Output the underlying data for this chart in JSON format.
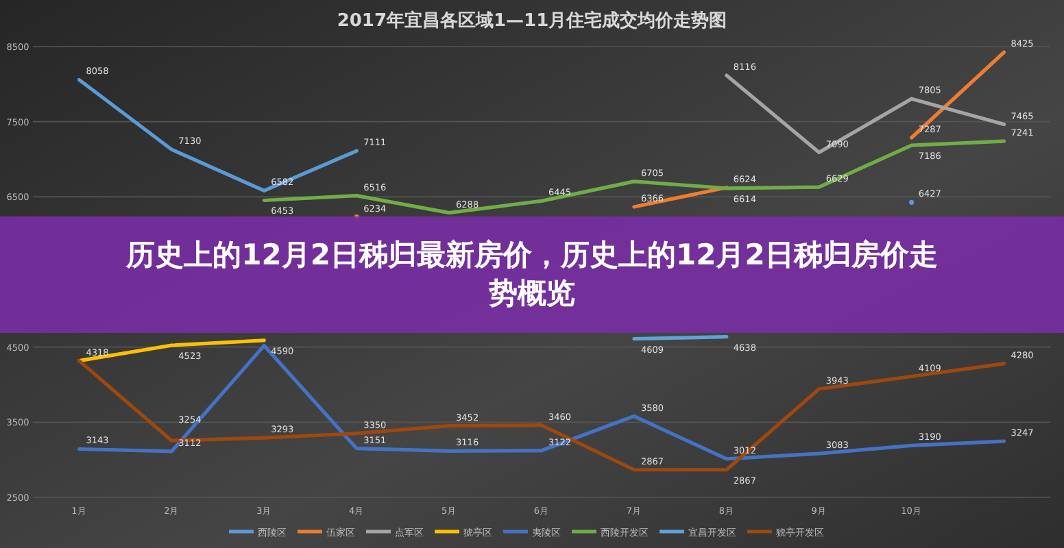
{
  "chart_data": {
    "type": "line",
    "title": "2017年宜昌各区域1—11月住宅成交均价走势图",
    "categories": [
      "1月",
      "2月",
      "3月",
      "4月",
      "5月",
      "6月",
      "7月",
      "8月",
      "9月",
      "10月",
      null
    ],
    "ylim": [
      2500,
      8500
    ],
    "yticks": [
      2500,
      3500,
      4500,
      6500,
      7500,
      8500
    ],
    "grid": "y",
    "legend": "bottom",
    "annotations": [
      "历史上的12月2日秭归最新房价，历史上的12月2日秭归房价走势概览"
    ],
    "series": [
      {
        "name": "西陵区",
        "color": "#5b9bd5",
        "values": [
          8058,
          7130,
          6582,
          7111,
          null,
          null,
          null,
          null,
          null,
          6427,
          null
        ],
        "value_labels": [
          "8058",
          "7130",
          "6582",
          "7111",
          null,
          null,
          null,
          null,
          null,
          "6427",
          null
        ]
      },
      {
        "name": "伍家区",
        "color": "#ed7d31",
        "values": [
          null,
          null,
          null,
          6234,
          null,
          null,
          6366,
          6624,
          null,
          7287,
          8425
        ],
        "value_labels": [
          null,
          null,
          null,
          "6234",
          null,
          null,
          "6366",
          "6624",
          null,
          "7287",
          "8425"
        ]
      },
      {
        "name": "点军区",
        "color": "#a5a5a5",
        "values": [
          null,
          null,
          null,
          null,
          null,
          null,
          null,
          8116,
          7090,
          7805,
          7465
        ],
        "value_labels": [
          null,
          null,
          null,
          null,
          null,
          null,
          null,
          "8116",
          "7090",
          "7805",
          "7465"
        ]
      },
      {
        "name": "猇亭区",
        "color": "#ffc000",
        "values": [
          4318,
          4523,
          4590,
          null,
          null,
          null,
          null,
          null,
          null,
          null,
          null
        ],
        "value_labels": [
          "4318",
          "4523",
          "4590",
          null,
          null,
          null,
          null,
          null,
          null,
          null,
          null
        ]
      },
      {
        "name": "夷陵区",
        "color": "#4472c4",
        "values": [
          3143,
          3112,
          4520,
          3151,
          3116,
          3122,
          3580,
          3012,
          3083,
          3190,
          3247
        ],
        "value_labels": [
          "3143",
          "3112",
          null,
          "3151",
          "3116",
          "3122",
          "3580",
          "3012",
          "3083",
          "3190",
          "3247"
        ]
      },
      {
        "name": "西陵开发区",
        "color": "#70ad47",
        "values": [
          null,
          null,
          6453,
          6516,
          6288,
          6445,
          6705,
          6614,
          6629,
          7186,
          7241
        ],
        "value_labels": [
          null,
          null,
          "6453",
          "6516",
          "6288",
          "6445",
          "6705",
          "6614",
          "6629",
          "7186",
          "7241"
        ]
      },
      {
        "name": "宜昌开发区",
        "color": "#5fa3d9",
        "values": [
          null,
          null,
          null,
          null,
          null,
          null,
          4609,
          4638,
          null,
          null,
          null
        ],
        "value_labels": [
          null,
          null,
          null,
          null,
          null,
          null,
          "4609",
          "4638",
          null,
          null,
          null
        ]
      },
      {
        "name": "猇亭开发区",
        "color": "#9e480e",
        "values": [
          4318,
          3254,
          3293,
          3350,
          3452,
          3460,
          2867,
          2867,
          3943,
          4109,
          4280
        ],
        "value_labels": [
          null,
          "3254",
          "3293",
          "3350",
          "3452",
          "3460",
          "2867",
          "2867",
          "3943",
          "4109",
          "4280"
        ]
      }
    ]
  }
}
